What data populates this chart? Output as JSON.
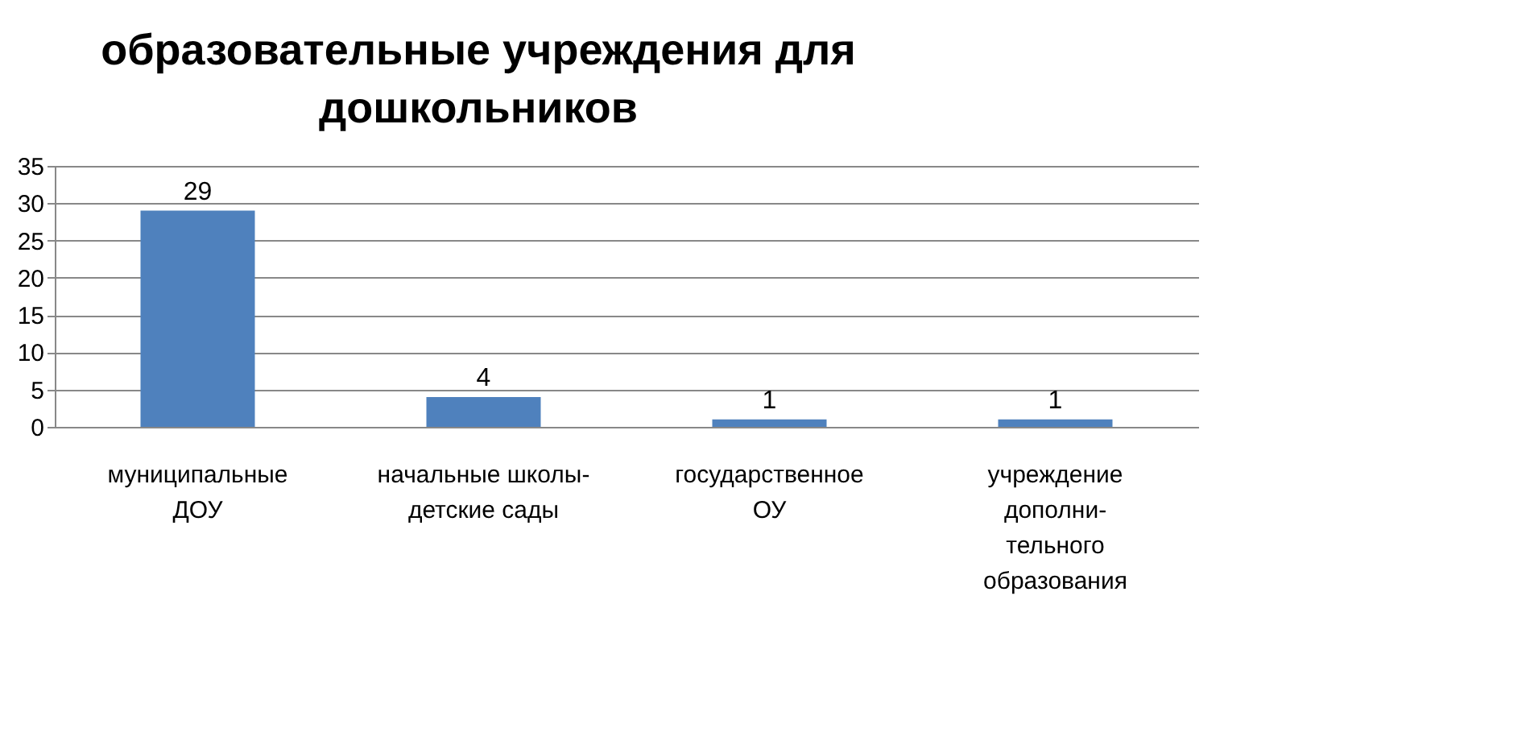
{
  "chart_data": {
    "type": "bar",
    "title": "образовательные учреждения для\nдошкольников",
    "categories": [
      "муниципальные\nДОУ",
      "начальные школы-\nдетские сады",
      "государственное\nОУ",
      "учреждение\nдополни-\nтельного\nобразования"
    ],
    "values": [
      29,
      4,
      1,
      1
    ],
    "color": "#4f81bd",
    "data_labels": true,
    "ylim": [
      0,
      35
    ],
    "yticks": [
      0,
      5,
      10,
      15,
      20,
      25,
      30,
      35
    ],
    "grid": "y"
  }
}
